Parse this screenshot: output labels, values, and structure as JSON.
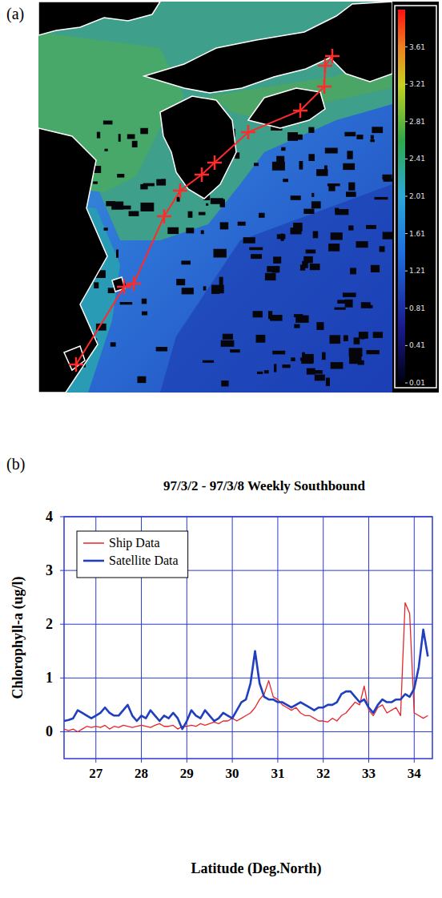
{
  "chart_data": [
    {
      "type": "map",
      "label": "(a)",
      "colorbar_lim": [
        0.01,
        4.01
      ],
      "colorbar_ticks": [
        0.01,
        0.41,
        0.81,
        1.21,
        1.61,
        2.01,
        2.41,
        2.81,
        3.21,
        3.61
      ]
    },
    {
      "type": "line",
      "label": "(b)",
      "title": "97/3/2 - 97/3/8 Weekly Southbound",
      "x_label": "Latitude (Deg.North)",
      "y_label": "Chlorophyll-a (ug/l)",
      "x": [
        26.3,
        26.4,
        26.5,
        26.6,
        26.7,
        26.8,
        26.9,
        27.0,
        27.1,
        27.2,
        27.3,
        27.4,
        27.5,
        27.6,
        27.7,
        27.8,
        27.9,
        28.0,
        28.1,
        28.2,
        28.3,
        28.4,
        28.5,
        28.6,
        28.7,
        28.8,
        28.9,
        29.0,
        29.1,
        29.2,
        29.3,
        29.4,
        29.5,
        29.6,
        29.7,
        29.8,
        29.9,
        30.0,
        30.1,
        30.2,
        30.3,
        30.4,
        30.5,
        30.6,
        30.7,
        30.8,
        30.9,
        31.0,
        31.1,
        31.2,
        31.3,
        31.4,
        31.5,
        31.6,
        31.7,
        31.8,
        31.9,
        32.0,
        32.1,
        32.2,
        32.3,
        32.4,
        32.5,
        32.6,
        32.7,
        32.8,
        32.9,
        33.0,
        33.1,
        33.2,
        33.3,
        33.4,
        33.5,
        33.6,
        33.7,
        33.8,
        33.9,
        34.0,
        34.1,
        34.2,
        34.3
      ],
      "series": [
        {
          "name": "Ship Data",
          "color": "#e8262a",
          "values": [
            0.05,
            0.02,
            0.05,
            0.0,
            0.05,
            0.1,
            0.08,
            0.1,
            0.08,
            0.12,
            0.05,
            0.1,
            0.08,
            0.12,
            0.1,
            0.08,
            0.1,
            0.12,
            0.1,
            0.08,
            0.12,
            0.15,
            0.1,
            0.1,
            0.12,
            0.05,
            0.1,
            0.1,
            0.12,
            0.1,
            0.15,
            0.12,
            0.15,
            0.18,
            0.15,
            0.2,
            0.2,
            0.25,
            0.2,
            0.25,
            0.3,
            0.35,
            0.45,
            0.6,
            0.7,
            0.95,
            0.65,
            0.6,
            0.5,
            0.45,
            0.4,
            0.45,
            0.35,
            0.3,
            0.3,
            0.25,
            0.2,
            0.2,
            0.18,
            0.25,
            0.2,
            0.3,
            0.35,
            0.45,
            0.55,
            0.5,
            0.85,
            0.4,
            0.3,
            0.45,
            0.5,
            0.35,
            0.4,
            0.45,
            0.3,
            2.4,
            2.2,
            0.35,
            0.3,
            0.25,
            0.3
          ]
        },
        {
          "name": "Satellite Data",
          "color": "#1f3fbf",
          "values": [
            0.2,
            0.22,
            0.25,
            0.4,
            0.35,
            0.3,
            0.25,
            0.3,
            0.35,
            0.45,
            0.35,
            0.3,
            0.3,
            0.4,
            0.5,
            0.3,
            0.2,
            0.3,
            0.25,
            0.4,
            0.3,
            0.2,
            0.3,
            0.25,
            0.35,
            0.25,
            0.05,
            0.2,
            0.4,
            0.3,
            0.25,
            0.4,
            0.3,
            0.2,
            0.25,
            0.35,
            0.3,
            0.25,
            0.4,
            0.55,
            0.6,
            0.9,
            1.5,
            0.9,
            0.65,
            0.6,
            0.6,
            0.55,
            0.55,
            0.5,
            0.45,
            0.5,
            0.55,
            0.5,
            0.45,
            0.4,
            0.45,
            0.45,
            0.5,
            0.5,
            0.55,
            0.7,
            0.75,
            0.75,
            0.65,
            0.55,
            0.6,
            0.45,
            0.35,
            0.5,
            0.6,
            0.55,
            0.55,
            0.6,
            0.6,
            0.7,
            0.65,
            0.8,
            1.2,
            1.9,
            1.4
          ]
        }
      ],
      "xlim": [
        26.3,
        34.4
      ],
      "ylim": [
        -0.5,
        4
      ],
      "xticks": [
        27,
        28,
        29,
        30,
        31,
        32,
        33,
        34
      ],
      "yticks": [
        0,
        1,
        2,
        3,
        4
      ],
      "grid": true,
      "legend": "upper-left"
    }
  ]
}
